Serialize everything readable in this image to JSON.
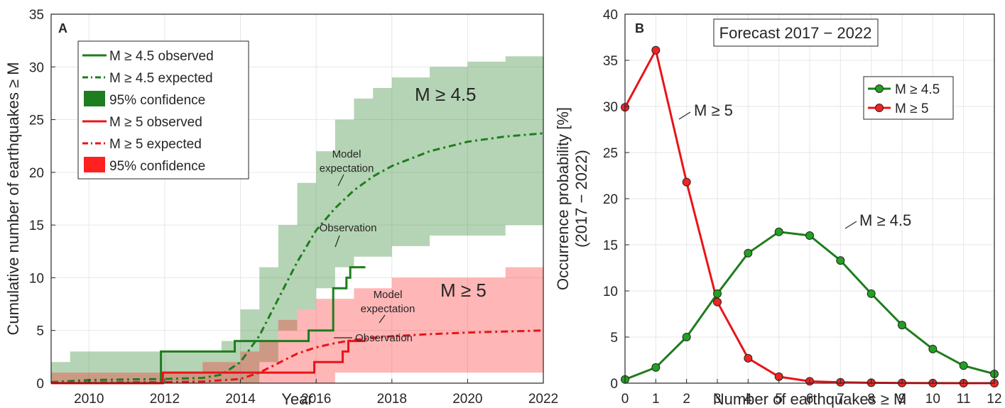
{
  "chart_data": [
    {
      "type": "line",
      "panel": "A",
      "xlabel": "Year",
      "ylabel": "Cumulative number of earthquakes ≥ M",
      "xlim": [
        2009,
        2022
      ],
      "ylim": [
        0,
        35
      ],
      "xticks": [
        2010,
        2012,
        2014,
        2016,
        2018,
        2020,
        2022
      ],
      "yticks": [
        0,
        5,
        10,
        15,
        20,
        25,
        30,
        35
      ],
      "grid": true,
      "legend_position": "top-left",
      "legend": [
        {
          "label": "M ≥ 4.5 observed",
          "style": "solid",
          "color": "#1e7d1e"
        },
        {
          "label": "M ≥ 4.5 expected",
          "style": "dashdot",
          "color": "#1e7d1e"
        },
        {
          "label": "95% confidence",
          "style": "patch",
          "color": "#1e7d1e"
        },
        {
          "label": "M ≥ 5 observed",
          "style": "solid",
          "color": "#e8141a"
        },
        {
          "label": "M ≥ 5 expected",
          "style": "dashdot",
          "color": "#e8141a"
        },
        {
          "label": "95% confidence",
          "style": "patch",
          "color": "#ff2020"
        }
      ],
      "annotations": {
        "green_big": "M ≥ 4.5",
        "red_big": "M ≥ 5",
        "model_green": [
          "Model",
          "expectation"
        ],
        "obs_green": "Observation",
        "model_red": [
          "Model",
          "expectation"
        ],
        "obs_red": "Observation"
      },
      "series": [
        {
          "name": "M ≥ 4.5 observed",
          "color": "#1e7d1e",
          "style": "step",
          "x": [
            2009.0,
            2011.9,
            2011.9,
            2013.85,
            2013.85,
            2015.8,
            2015.8,
            2016.45,
            2016.45,
            2016.8,
            2016.8,
            2016.9,
            2016.9,
            2017.3
          ],
          "y": [
            0,
            0,
            3,
            3,
            4,
            4,
            5,
            5,
            9,
            9,
            10,
            10,
            11,
            11
          ]
        },
        {
          "name": "M ≥ 4.5 expected",
          "color": "#1e7d1e",
          "style": "dashdot",
          "x": [
            2009,
            2010,
            2012,
            2013,
            2013.5,
            2014,
            2014.5,
            2015,
            2015.5,
            2016,
            2016.5,
            2017,
            2017.5,
            2018,
            2019,
            2020,
            2021,
            2022
          ],
          "y": [
            0.1,
            0.3,
            0.4,
            0.5,
            0.8,
            2.0,
            4.5,
            8.0,
            11.5,
            14.5,
            16.6,
            18.3,
            19.6,
            20.6,
            22.0,
            22.9,
            23.4,
            23.7
          ]
        },
        {
          "name": "M ≥ 5 observed",
          "color": "#e8141a",
          "style": "step",
          "x": [
            2009.0,
            2011.95,
            2011.95,
            2015.95,
            2015.95,
            2016.7,
            2016.7,
            2016.85,
            2016.85,
            2017.3
          ],
          "y": [
            0,
            0,
            1,
            1,
            2,
            2,
            3,
            3,
            4,
            4
          ]
        },
        {
          "name": "M ≥ 5 expected",
          "color": "#e8141a",
          "style": "dashdot",
          "x": [
            2009,
            2012,
            2013,
            2014,
            2014.5,
            2015,
            2015.5,
            2016,
            2016.5,
            2017,
            2017.5,
            2018,
            2019,
            2020,
            2021,
            2022
          ],
          "y": [
            0.05,
            0.1,
            0.15,
            0.4,
            1.0,
            1.9,
            2.8,
            3.4,
            3.8,
            4.1,
            4.3,
            4.45,
            4.65,
            4.8,
            4.9,
            5.0
          ]
        }
      ],
      "bands": [
        {
          "name": "M ≥ 4.5 95% confidence",
          "color": "#1e7d1e",
          "x": [
            2009,
            2009.5,
            2010,
            2012,
            2013,
            2013.5,
            2014,
            2014.5,
            2015,
            2015.5,
            2016,
            2016.5,
            2017,
            2017.5,
            2018,
            2019,
            2020,
            2021,
            2022
          ],
          "upper": [
            2,
            3,
            3,
            3,
            3,
            4,
            7,
            11,
            15,
            19,
            22,
            25,
            27,
            28,
            29,
            30,
            30.5,
            31,
            31
          ],
          "lower": [
            0,
            0,
            0,
            0,
            0,
            0,
            0,
            0,
            2,
            5,
            7,
            9,
            11,
            12,
            12,
            13,
            14,
            14,
            15
          ]
        },
        {
          "name": "M ≥ 5 95% confidence",
          "color": "#ff2020",
          "x": [
            2009,
            2012,
            2013,
            2013.5,
            2014,
            2014.5,
            2015,
            2015.5,
            2016,
            2016.5,
            2017,
            2017.5,
            2018,
            2019,
            2020,
            2021,
            2022
          ],
          "upper": [
            1,
            1,
            2,
            2,
            3,
            4,
            6,
            7,
            8,
            8,
            9,
            9,
            10,
            10,
            10,
            11,
            11
          ],
          "lower": [
            0,
            0,
            0,
            0,
            0,
            0,
            0,
            0,
            0,
            0,
            1,
            1,
            1,
            1,
            1,
            1,
            1
          ]
        }
      ]
    },
    {
      "type": "line",
      "panel": "B",
      "title": "Forecast 2017 − 2022",
      "xlabel": "Number of earthquakes ≥ M",
      "ylabel": "Occurrence probability [%]",
      "ylabel2": "(2017 − 2022)",
      "xlim": [
        0,
        12
      ],
      "ylim": [
        0,
        40
      ],
      "xticks": [
        0,
        1,
        2,
        3,
        4,
        5,
        6,
        7,
        8,
        9,
        10,
        11,
        12
      ],
      "yticks": [
        0,
        5,
        10,
        15,
        20,
        25,
        30,
        35,
        40
      ],
      "grid": true,
      "legend_position": "top-right",
      "markers": "circle",
      "annotations": {
        "red": "M ≥ 5",
        "green": "M ≥ 4.5"
      },
      "x": [
        0,
        1,
        2,
        3,
        4,
        5,
        6,
        7,
        8,
        9,
        10,
        11,
        12
      ],
      "series": [
        {
          "name": "M ≥ 4.5",
          "color": "#1e7d1e",
          "marker_fill": "#22a022",
          "values": [
            0.4,
            1.7,
            5.0,
            9.7,
            14.1,
            16.4,
            16.0,
            13.3,
            9.7,
            6.3,
            3.7,
            1.9,
            1.0
          ]
        },
        {
          "name": "M ≥ 5",
          "color": "#e8141a",
          "marker_fill": "#ef2424",
          "values": [
            29.9,
            36.1,
            21.8,
            8.8,
            2.7,
            0.7,
            0.2,
            0.1,
            0.05,
            0.02,
            0.01,
            0.0,
            0.0
          ]
        }
      ]
    }
  ]
}
